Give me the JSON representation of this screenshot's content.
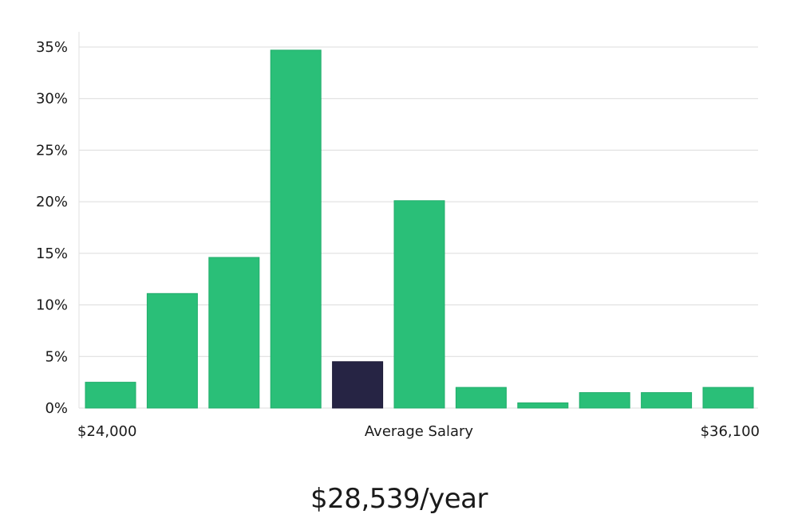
{
  "chart_data": {
    "type": "bar",
    "x_tick_labels": [
      "$24,000",
      "Average Salary",
      "$36,100"
    ],
    "y_tick_labels": [
      "0%",
      "5%",
      "10%",
      "15%",
      "20%",
      "25%",
      "30%",
      "35%"
    ],
    "ylim": [
      0,
      35
    ],
    "values": [
      2.5,
      11.1,
      14.6,
      34.7,
      4.5,
      20.1,
      2.0,
      0.5,
      1.5,
      1.5,
      2.0
    ],
    "highlight_index": 4,
    "bar_color": "#2abf78",
    "highlight_color": "#262444",
    "grid": true
  },
  "summary": {
    "value": "$28,539/year"
  }
}
